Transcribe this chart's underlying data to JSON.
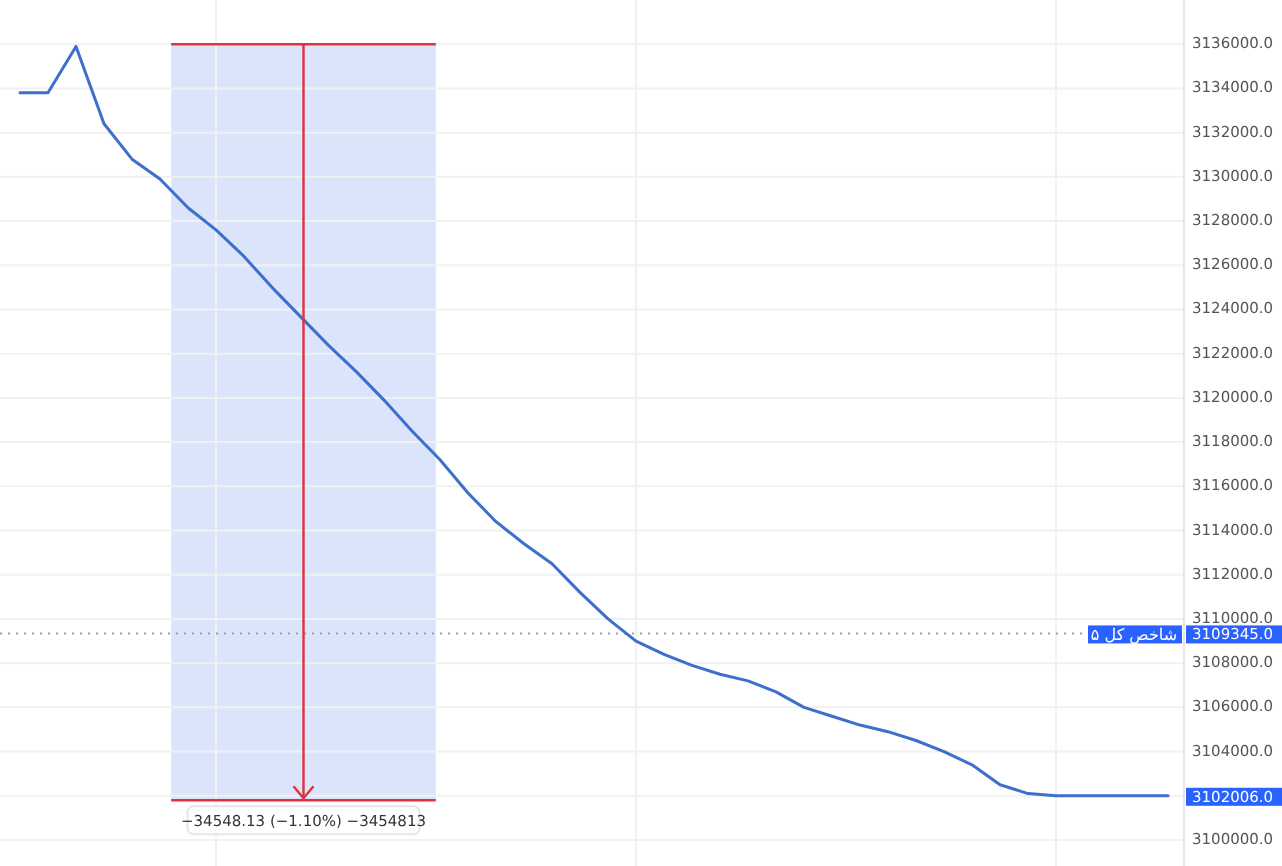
{
  "chart_data": {
    "type": "line",
    "categories": [
      null,
      null,
      null,
      null,
      null,
      null,
      null,
      null,
      null,
      null,
      null,
      null,
      null,
      null,
      null,
      null,
      null,
      null,
      null,
      null,
      null,
      null,
      null,
      null,
      null,
      null,
      null,
      null,
      null,
      null,
      null,
      null,
      null,
      null,
      null,
      null,
      null,
      null,
      null,
      null,
      null,
      null
    ],
    "series": [
      {
        "color": "#3d6fcc",
        "values": [
          3133800,
          3133800,
          3135900,
          3132400,
          3130800,
          3129900,
          3128600,
          3127600,
          3126400,
          3125000,
          3123700,
          3122400,
          3121200,
          3119900,
          3118500,
          3117200,
          3115700,
          3114400,
          3113400,
          3112500,
          3111200,
          3110000,
          3109000,
          3108400,
          3107900,
          3107500,
          3107200,
          3106700,
          3106000,
          3105600,
          3105200,
          3104900,
          3104500,
          3104000,
          3103400,
          3102500,
          3102100,
          3102000,
          3102000,
          3102000,
          3102000,
          3102000
        ]
      }
    ],
    "ylim": [
      3100000,
      3138000
    ],
    "yticks": [
      {
        "value": 3100000,
        "label": "3100000.0"
      },
      {
        "value": 3102000,
        "label": null
      },
      {
        "value": 3104000,
        "label": "3104000.0"
      },
      {
        "value": 3106000,
        "label": "3106000.0"
      },
      {
        "value": 3108000,
        "label": "3108000.0"
      },
      {
        "value": 3110000,
        "label": "3110000.0"
      },
      {
        "value": 3112000,
        "label": "3112000.0"
      },
      {
        "value": 3114000,
        "label": "3114000.0"
      },
      {
        "value": 3116000,
        "label": "3116000.0"
      },
      {
        "value": 3118000,
        "label": "3118000.0"
      },
      {
        "value": 3120000,
        "label": "3120000.0"
      },
      {
        "value": 3122000,
        "label": "3122000.0"
      },
      {
        "value": 3124000,
        "label": "3124000.0"
      },
      {
        "value": 3126000,
        "label": "3126000.0"
      },
      {
        "value": 3128000,
        "label": "3128000.0"
      },
      {
        "value": 3130000,
        "label": "3130000.0"
      },
      {
        "value": 3132000,
        "label": "3132000.0"
      },
      {
        "value": 3134000,
        "label": "3134000.0"
      },
      {
        "value": 3136000,
        "label": "3136000.0"
      }
    ],
    "ref_lines": [
      {
        "axis": "y",
        "value": 3109345,
        "label": "شاخص کل ۵",
        "color": "#9aa0a8",
        "line_style": "dotted"
      }
    ],
    "bands": [
      {
        "axis": "y",
        "from": 3101800,
        "to": 3136000,
        "color": "#dbe4fb"
      }
    ],
    "annotations": [
      "−34548.13 (−1.10%) −3454813",
      "3109345.0",
      "3102006.0"
    ],
    "grid": true,
    "marker": "none",
    "line_style": "solid"
  }
}
